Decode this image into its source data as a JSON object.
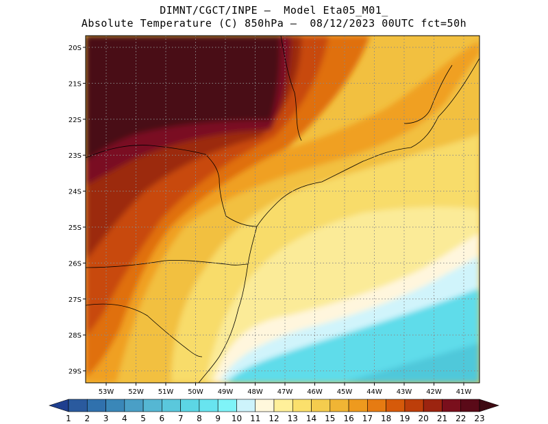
{
  "title": {
    "line1": "DIMNT/CGCT/INPE –  Model Eta05_M01_",
    "line2": "Absolute Temperature (C) 850hPa –  08/12/2023 00UTC fct=50h"
  },
  "map": {
    "lat_labels": [
      "20S",
      "21S",
      "22S",
      "23S",
      "24S",
      "25S",
      "26S",
      "27S",
      "28S",
      "29S"
    ],
    "lon_labels": [
      "53W",
      "52W",
      "51W",
      "50W",
      "49W",
      "48W",
      "47W",
      "46W",
      "45W",
      "44W",
      "43W",
      "42W",
      "41W"
    ]
  },
  "colorbar": {
    "labels": [
      "1",
      "2",
      "3",
      "4",
      "5",
      "6",
      "7",
      "8",
      "9",
      "10",
      "11",
      "12",
      "13",
      "14",
      "15",
      "16",
      "17",
      "18",
      "19",
      "20",
      "21",
      "22",
      "23"
    ],
    "colors": [
      "#1f3f8f",
      "#2a5a9e",
      "#3071ad",
      "#3a87b8",
      "#4a9fc6",
      "#55b7d3",
      "#5ac8dc",
      "#5cd6e5",
      "#68e4ef",
      "#7ff3f8",
      "#cdf3fb",
      "#fff8dc",
      "#fff09a",
      "#fbe06c",
      "#f4cc4e",
      "#f0b534",
      "#ee9a1e",
      "#e67b12",
      "#d65a0a",
      "#bd3e0a",
      "#9c2410",
      "#7a0f1c",
      "#5a0a18",
      "#3e0a12"
    ]
  },
  "legend_colors": {
    "darkest": "#4a1015",
    "deep_red": "#7a0c22",
    "brown_red": "#9c2c10",
    "red_orange": "#c84a0a",
    "orange": "#e0700f",
    "amber": "#f0a020",
    "gold": "#f2c040",
    "yellow": "#f8dc6a",
    "pale_yellow": "#fbeb98",
    "cream": "#fff6dd",
    "pale_cyan": "#d0f4fb",
    "cyan": "#5fdcea",
    "teal": "#4fc8da"
  }
}
